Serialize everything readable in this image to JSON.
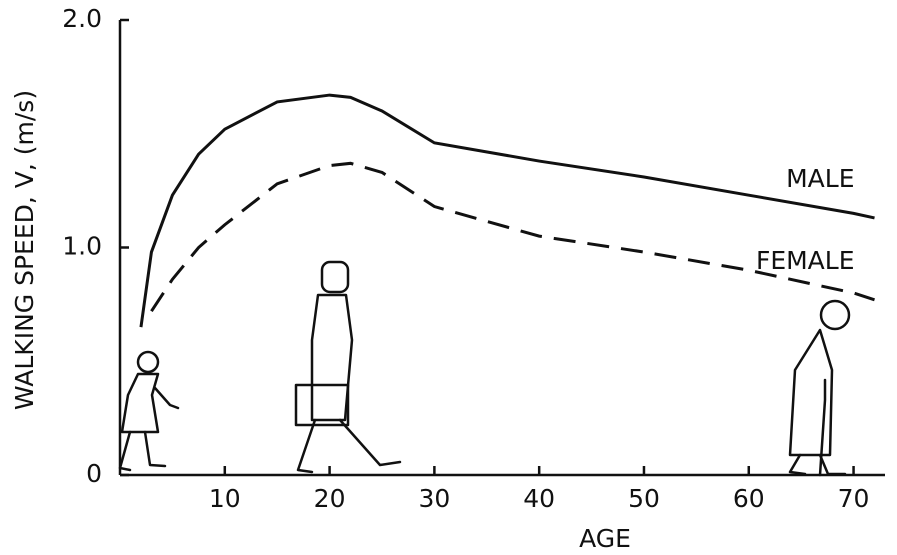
{
  "chart_data": {
    "type": "line",
    "x_label": "AGE",
    "y_label": "WALKING SPEED, V, (m/s)",
    "x": [
      2,
      3,
      5,
      7.5,
      10,
      15,
      20,
      22,
      25,
      30,
      40,
      50,
      60,
      70,
      72
    ],
    "series": [
      {
        "name": "MALE",
        "color": "#111111",
        "style": "solid",
        "values": [
          0.65,
          0.98,
          1.23,
          1.41,
          1.52,
          1.64,
          1.67,
          1.66,
          1.6,
          1.46,
          1.38,
          1.31,
          1.23,
          1.15,
          1.13
        ]
      },
      {
        "name": "FEMALE",
        "color": "#111111",
        "style": "dashed",
        "values": [
          null,
          0.72,
          0.86,
          1.0,
          1.1,
          1.28,
          1.36,
          1.37,
          1.33,
          1.18,
          1.05,
          0.98,
          0.9,
          0.8,
          0.77
        ]
      }
    ],
    "xlim": [
      0,
      73
    ],
    "xticks": [
      10,
      20,
      30,
      40,
      50,
      60,
      70
    ],
    "ylim": [
      0,
      2
    ],
    "yticks": [
      0,
      {
        "value": 1,
        "label": "1.0"
      },
      {
        "value": 2,
        "label": "2.0"
      }
    ],
    "grid": false
  }
}
